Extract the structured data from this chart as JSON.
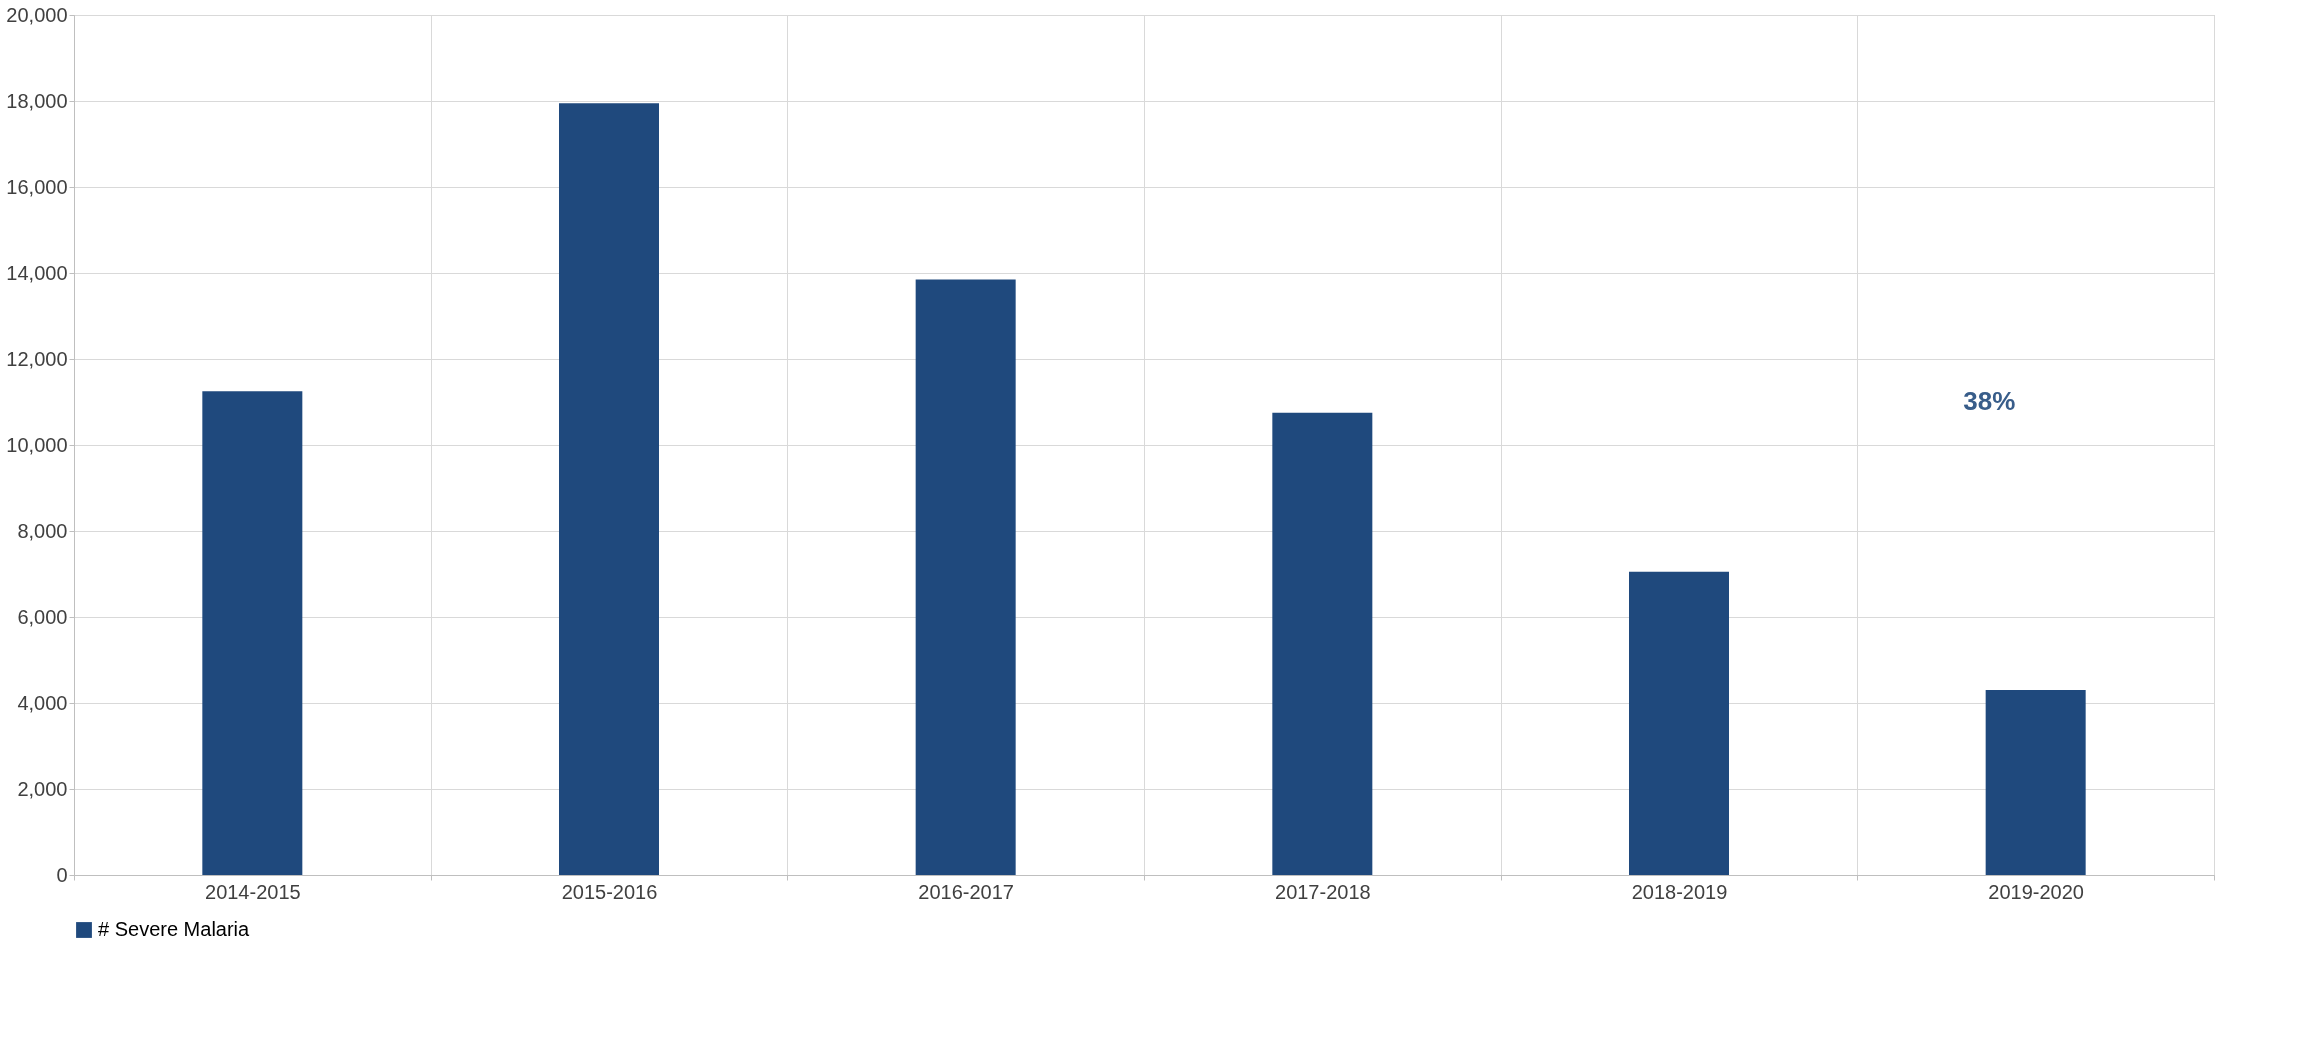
{
  "chart_data": {
    "type": "bar",
    "categories": [
      "2014-2015",
      "2015-2016",
      "2016-2017",
      "2017-2018",
      "2018-2019",
      "2019-2020"
    ],
    "series": [
      {
        "name": "# Severe Malaria",
        "color": "#1f497d",
        "values": [
          11250,
          17950,
          13850,
          10750,
          7050,
          4300
        ]
      }
    ],
    "ylim": [
      0,
      20000
    ],
    "yticks": [
      0,
      {
        "value": 2000,
        "label": "2,000"
      },
      {
        "value": 4000,
        "label": "4,000"
      },
      {
        "value": 6000,
        "label": "6,000"
      },
      {
        "value": 8000,
        "label": "8,000"
      },
      {
        "value": 10000,
        "label": "10,000"
      },
      {
        "value": 12000,
        "label": "12,000"
      },
      {
        "value": 14000,
        "label": "14,000"
      },
      {
        "value": 16000,
        "label": "16,000"
      },
      {
        "value": 18000,
        "label": "18,000"
      },
      {
        "value": 20000,
        "label": "20,000"
      }
    ],
    "grid": true,
    "legend": "bottom",
    "annotations": [
      "38%"
    ]
  }
}
